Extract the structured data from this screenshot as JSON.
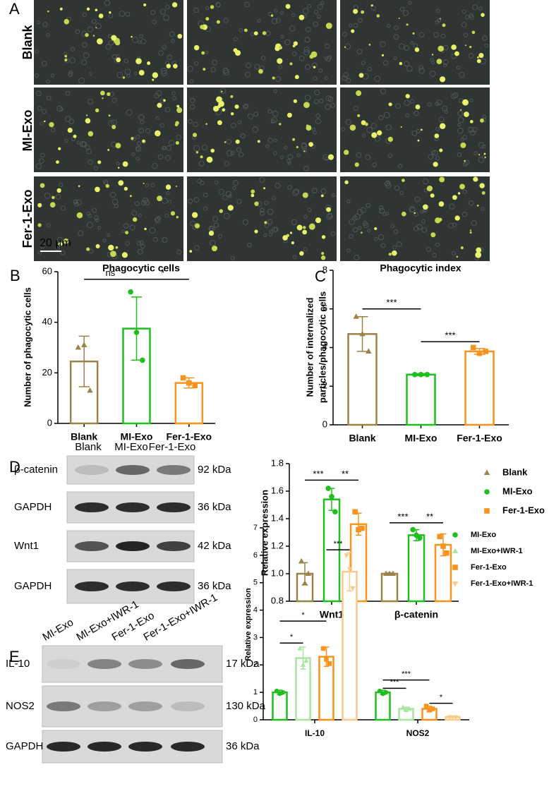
{
  "panel_a": {
    "label": "A",
    "rows": [
      "Blank",
      "MI-Exo",
      "Fer-1-Exo"
    ],
    "scale_bar": "20 µm"
  },
  "blot_d": {
    "lanes": [
      "Blank",
      "MI-Exo",
      "Fer-1-Exo"
    ],
    "proteins": [
      "β-catenin",
      "GAPDH",
      "Wnt1",
      "GAPDH"
    ],
    "sizes": [
      "92 kDa",
      "36 kDa",
      "42 kDa",
      "36 kDa"
    ]
  },
  "blot_e": {
    "lanes": [
      "MI-Exo",
      "MI-Exo+IWR-1",
      "Fer-1-Exo",
      "Fer-1-Exo+IWR-1"
    ],
    "proteins": [
      "IL-10",
      "NOS2",
      "GAPDH"
    ],
    "sizes": [
      "17 kDa",
      "130 kDa",
      "36 kDa"
    ]
  },
  "chart_data": [
    {
      "type": "bar",
      "panel": "B",
      "title": "Phagocytic cells",
      "ylabel": [
        "Number of phagocytic cells"
      ],
      "categories": [
        "Blank",
        "MI-Exo",
        "Fer-1-Exo"
      ],
      "values": [
        24.5,
        37.5,
        16
      ],
      "errors": [
        10,
        12.5,
        2
      ],
      "points": [
        [
          30,
          31,
          13
        ],
        [
          52,
          36,
          25
        ],
        [
          18,
          16,
          15
        ]
      ],
      "colors": [
        "#9b8347",
        "#1fbf1f",
        "#f7931e"
      ],
      "markers": [
        "triangle",
        "circle",
        "square"
      ],
      "ylim": [
        0,
        60
      ],
      "yticks": [
        0,
        20,
        40,
        60
      ],
      "annotations": [
        "ns",
        "*"
      ]
    },
    {
      "type": "bar",
      "panel": "C",
      "title": "Phagocytic index",
      "ylabel": [
        "Number of internalized",
        "particles/phagocytic cells"
      ],
      "categories": [
        "Blank",
        "MI-Exo",
        "Fer-1-Exo"
      ],
      "values": [
        4.7,
        2.6,
        3.8
      ],
      "errors": [
        0.9,
        0.05,
        0.15
      ],
      "points": [
        [
          5.6,
          4.7,
          3.8
        ],
        [
          2.6,
          2.6,
          2.6
        ],
        [
          4.0,
          3.7,
          3.8
        ]
      ],
      "colors": [
        "#9b8347",
        "#1fbf1f",
        "#f7931e"
      ],
      "markers": [
        "triangle",
        "circle",
        "square"
      ],
      "ylim": [
        0,
        8
      ],
      "yticks": [
        0,
        2,
        4,
        6,
        8
      ],
      "annotations": [
        "***",
        "***"
      ]
    },
    {
      "type": "bar",
      "panel": "D",
      "ylabel": [
        "Relative expression"
      ],
      "categories": [
        "Wnt1",
        "β-catenin"
      ],
      "series": [
        {
          "name": "Blank",
          "color": "#9b8347",
          "marker": "triangle",
          "values": [
            1.0,
            1.0
          ],
          "errors": [
            0.08,
            0.005
          ],
          "points": [
            [
              1.09,
              0.93,
              1.0
            ],
            [
              1.0,
              1.0,
              1.0
            ]
          ]
        },
        {
          "name": "MI-Exo",
          "color": "#1fbf1f",
          "marker": "circle",
          "values": [
            1.54,
            1.28
          ],
          "errors": [
            0.08,
            0.04
          ],
          "points": [
            [
              1.62,
              1.56,
              1.45
            ],
            [
              1.32,
              1.28,
              1.26
            ]
          ]
        },
        {
          "name": "Fer-1-Exo",
          "color": "#f7931e",
          "marker": "square",
          "values": [
            1.36,
            1.21
          ],
          "errors": [
            0.08,
            0.08
          ],
          "points": [
            [
              1.45,
              1.32,
              1.33
            ],
            [
              1.27,
              1.2,
              1.15
            ]
          ]
        }
      ],
      "ylim": [
        0.8,
        1.8
      ],
      "yticks": [
        0.8,
        {
          "value": 1.0,
          "label": "1.0"
        },
        1.2,
        1.4,
        1.6,
        1.8
      ],
      "annotations": [
        "***",
        "**",
        "***",
        "**"
      ]
    },
    {
      "type": "bar",
      "panel": "E",
      "ylabel": [
        "Relative expression"
      ],
      "categories": [
        "IL-10",
        "NOS2"
      ],
      "series": [
        {
          "name": "MI-Exo",
          "color": "#1fbf1f",
          "marker": "circle",
          "values": [
            1.0,
            1.0
          ],
          "errors": [
            0.08,
            0.08
          ],
          "points": [
            [
              1.05,
              0.95,
              1.0
            ],
            [
              1.05,
              0.95,
              1.0
            ]
          ]
        },
        {
          "name": "MI-Exo+IWR-1",
          "color": "#a8e6a0",
          "marker": "triangle",
          "values": [
            2.25,
            0.4
          ],
          "errors": [
            0.4,
            0.06
          ],
          "points": [
            [
              2.6,
              2.0,
              2.15
            ],
            [
              0.45,
              0.35,
              0.4
            ]
          ]
        },
        {
          "name": "Fer-1-Exo",
          "color": "#f7931e",
          "marker": "square",
          "values": [
            2.3,
            0.4
          ],
          "errors": [
            0.35,
            0.1
          ],
          "points": [
            [
              2.6,
              2.2,
              2.05
            ],
            [
              0.5,
              0.35,
              0.4
            ]
          ]
        },
        {
          "name": "Fer-1-Exo+IWR-1",
          "color": "#fbc98a",
          "marker": "triangle-down",
          "values": [
            5.4,
            0.1
          ],
          "errors": [
            0.7,
            0.01
          ],
          "points": [
            [
              6.0,
              5.5,
              4.8
            ],
            [
              0.1,
              0.1,
              0.1
            ]
          ]
        }
      ],
      "ylim": [
        0,
        7
      ],
      "yticks": [
        0,
        1,
        2,
        3,
        4,
        5,
        6,
        7
      ],
      "annotations": [
        "*",
        "*",
        "***",
        "***",
        "***",
        "*"
      ]
    }
  ]
}
